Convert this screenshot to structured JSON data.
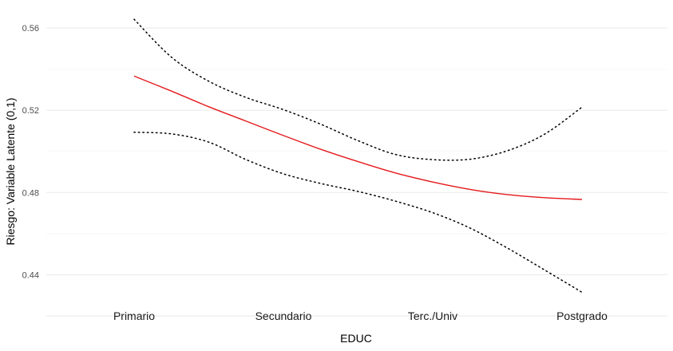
{
  "chart_data": {
    "type": "line",
    "title": "",
    "xlabel": "EDUC",
    "ylabel": "Riesgo: Variable Latente (0,1)",
    "categories": [
      "Primario",
      "Secundario",
      "Terc./Univ",
      "Postgrado"
    ],
    "yticks": [
      "0.44",
      "0.48",
      "0.52",
      "0.56"
    ],
    "ytick_values": [
      0.44,
      0.48,
      0.52,
      0.56
    ],
    "ylim": [
      0.42,
      0.5705
    ],
    "grid": true,
    "legend": "none",
    "series": [
      {
        "role": "estimate",
        "color": "#e41a1c",
        "style": "solid",
        "x": [
          1,
          1.25,
          1.5,
          1.75,
          2,
          2.25,
          2.5,
          2.75,
          3,
          3.25,
          3.5,
          3.75,
          4
        ],
        "y": [
          0.5366,
          0.5293,
          0.5217,
          0.5147,
          0.5077,
          0.501,
          0.495,
          0.4895,
          0.4851,
          0.4815,
          0.479,
          0.4775,
          0.4766
        ]
      },
      {
        "role": "upper",
        "color": "#000000",
        "style": "dotted",
        "x": [
          1,
          1.25,
          1.5,
          1.75,
          2,
          2.25,
          2.5,
          2.75,
          3,
          3.25,
          3.5,
          3.75,
          4
        ],
        "y": [
          0.5642,
          0.5458,
          0.5341,
          0.5262,
          0.5203,
          0.5132,
          0.5052,
          0.4985,
          0.496,
          0.4962,
          0.5003,
          0.5084,
          0.5215
        ]
      },
      {
        "role": "lower",
        "color": "#000000",
        "style": "dotted",
        "x": [
          1,
          1.25,
          1.5,
          1.75,
          2,
          2.25,
          2.5,
          2.75,
          3,
          3.25,
          3.5,
          3.75,
          4
        ],
        "y": [
          0.5093,
          0.5085,
          0.5045,
          0.496,
          0.4891,
          0.4844,
          0.4805,
          0.4758,
          0.4702,
          0.4627,
          0.453,
          0.4423,
          0.4315
        ]
      }
    ]
  }
}
